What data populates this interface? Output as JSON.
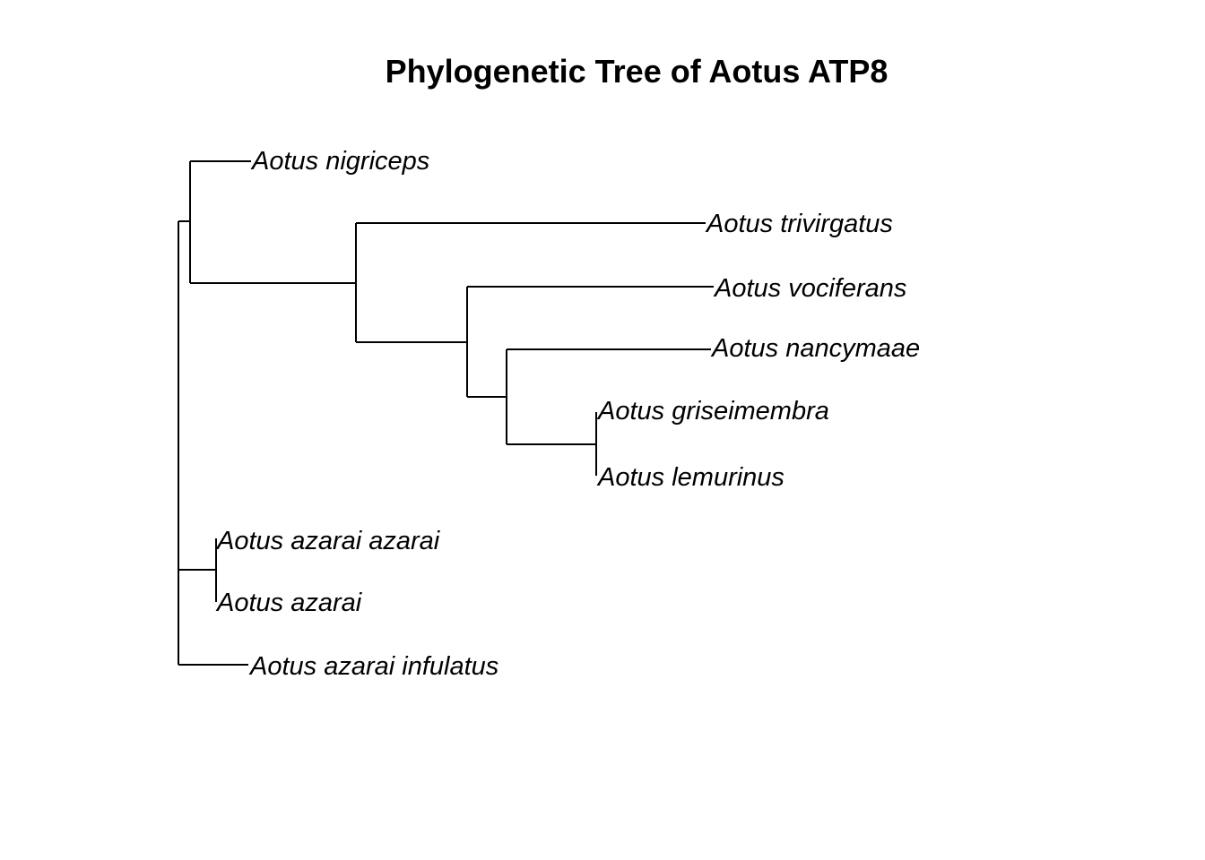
{
  "title": "Phylogenetic Tree of Aotus ATP8",
  "tips": [
    "Aotus nigriceps",
    "Aotus trivirgatus",
    "Aotus vociferans",
    "Aotus nancymaae",
    "Aotus griseimembra",
    "Aotus lemurinus",
    "Aotus azarai azarai",
    "Aotus azarai",
    "Aotus azarai infulatus"
  ]
}
